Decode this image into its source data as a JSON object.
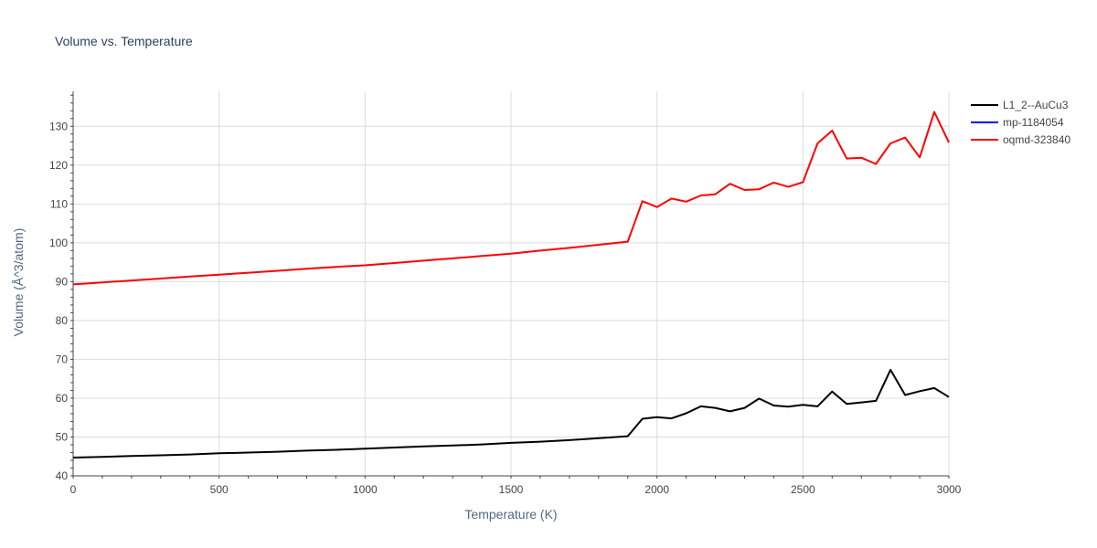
{
  "chart_data": {
    "type": "line",
    "title": "Volume vs. Temperature",
    "xlabel": "Temperature (K)",
    "ylabel": "Volume (Å^3/atom)",
    "xlim": [
      0,
      3000
    ],
    "ylim": [
      40,
      139
    ],
    "x_ticks": [
      0,
      500,
      1000,
      1500,
      2000,
      2500,
      3000
    ],
    "y_ticks": [
      40,
      50,
      60,
      70,
      80,
      90,
      100,
      110,
      120,
      130
    ],
    "grid": true,
    "legend_position": "top-right",
    "series": [
      {
        "name": "L1_2--AuCu3",
        "color": "#000000",
        "x": [
          0,
          100,
          200,
          300,
          400,
          500,
          600,
          700,
          800,
          900,
          1000,
          1100,
          1200,
          1300,
          1400,
          1500,
          1600,
          1700,
          1800,
          1900,
          1950,
          2000,
          2050,
          2100,
          2150,
          2200,
          2250,
          2300,
          2350,
          2400,
          2450,
          2500,
          2550,
          2600,
          2650,
          2700,
          2750,
          2800,
          2850,
          2900,
          2950,
          3000
        ],
        "y": [
          44.7,
          44.9,
          45.1,
          45.3,
          45.5,
          45.8,
          46.0,
          46.2,
          46.5,
          46.7,
          47.0,
          47.3,
          47.6,
          47.8,
          48.1,
          48.5,
          48.8,
          49.2,
          49.7,
          50.2,
          54.7,
          55.1,
          54.8,
          56.1,
          57.9,
          57.5,
          56.6,
          57.5,
          59.9,
          58.1,
          57.8,
          58.3,
          57.9,
          61.7,
          58.5,
          58.9,
          59.3,
          67.3,
          60.8,
          61.8,
          62.6,
          60.3
        ]
      },
      {
        "name": "mp-1184054",
        "color": "#0000ff",
        "x": [],
        "y": []
      },
      {
        "name": "oqmd-323840",
        "color": "#ff0000",
        "x": [
          0,
          100,
          200,
          300,
          400,
          500,
          600,
          700,
          800,
          900,
          1000,
          1100,
          1200,
          1300,
          1400,
          1500,
          1600,
          1700,
          1800,
          1900,
          1950,
          2000,
          2050,
          2100,
          2150,
          2200,
          2250,
          2300,
          2350,
          2400,
          2450,
          2500,
          2550,
          2600,
          2650,
          2700,
          2750,
          2800,
          2850,
          2900,
          2950,
          3000
        ],
        "y": [
          89.3,
          89.8,
          90.3,
          90.8,
          91.3,
          91.8,
          92.3,
          92.8,
          93.3,
          93.8,
          94.2,
          94.8,
          95.4,
          96.0,
          96.6,
          97.2,
          98.0,
          98.7,
          99.5,
          100.3,
          110.7,
          109.2,
          111.4,
          110.6,
          112.2,
          112.5,
          115.2,
          113.6,
          113.8,
          115.5,
          114.4,
          115.6,
          125.6,
          128.9,
          121.7,
          121.9,
          120.3,
          125.6,
          127.1,
          122.0,
          133.7,
          125.8
        ]
      }
    ]
  }
}
